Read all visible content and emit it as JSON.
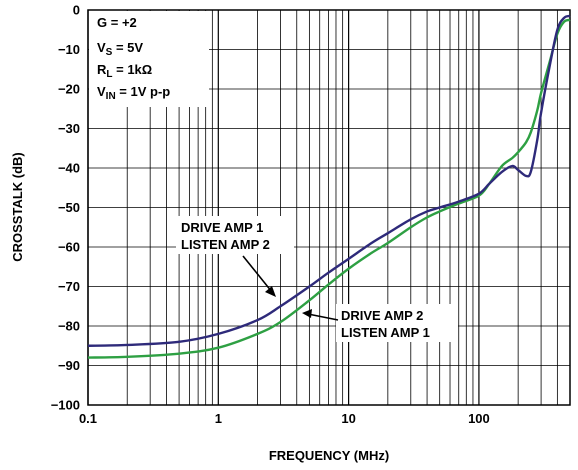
{
  "chart_data": {
    "type": "line",
    "xlabel": "FREQUENCY (MHz)",
    "ylabel": "CROSSTALK (dB)",
    "xscale": "log",
    "xlim": [
      0.1,
      500
    ],
    "ylim": [
      -100,
      0
    ],
    "grid": true,
    "xticks": [
      "0.1",
      "1",
      "10",
      "100"
    ],
    "yticks": [
      "0",
      "−10",
      "−20",
      "−30",
      "−40",
      "−50",
      "−60",
      "−70",
      "−80",
      "−90",
      "−100"
    ],
    "conditions": {
      "gain": {
        "name": "G",
        "value": "= +2"
      },
      "supply": {
        "name": "V",
        "sub": "S",
        "value": "= 5V"
      },
      "load": {
        "name": "R",
        "sub": "L",
        "value": "= 1kΩ"
      },
      "input": {
        "name": "V",
        "sub": "IN",
        "value": "= 1V p-p"
      }
    },
    "annotations": [
      {
        "lines": [
          "DRIVE AMP 1",
          "LISTEN AMP 2"
        ]
      },
      {
        "lines": [
          "DRIVE AMP 2",
          "LISTEN AMP 1"
        ]
      }
    ],
    "series": [
      {
        "color": "#2e2a7a",
        "x": [
          0.1,
          0.2,
          0.5,
          1,
          2,
          3,
          5,
          7,
          10,
          15,
          20,
          30,
          40,
          50,
          70,
          100,
          120,
          150,
          180,
          200,
          230,
          250,
          280,
          300,
          350,
          400,
          450,
          500
        ],
        "y": [
          -85,
          -84.8,
          -84,
          -82,
          -78.5,
          -75,
          -70,
          -66.5,
          -63,
          -59,
          -56.5,
          -53,
          -51,
          -50,
          -48.5,
          -46.5,
          -44,
          -41,
          -39.5,
          -40.5,
          -42,
          -41,
          -33,
          -26,
          -14,
          -5,
          -2,
          -1.5
        ]
      },
      {
        "color": "#2ea043",
        "x": [
          0.1,
          0.2,
          0.5,
          1,
          2,
          3,
          5,
          7,
          10,
          15,
          20,
          30,
          40,
          50,
          70,
          100,
          120,
          150,
          180,
          200,
          230,
          250,
          280,
          300,
          350,
          400,
          450,
          500
        ],
        "y": [
          -88,
          -87.8,
          -87,
          -85.5,
          -82,
          -79,
          -73.5,
          -69.5,
          -65.5,
          -61.5,
          -59,
          -55,
          -52.5,
          -51,
          -49,
          -47,
          -44,
          -39.5,
          -37.5,
          -36,
          -33.5,
          -31,
          -25.5,
          -21,
          -13,
          -6,
          -3,
          -2.5
        ]
      }
    ]
  }
}
